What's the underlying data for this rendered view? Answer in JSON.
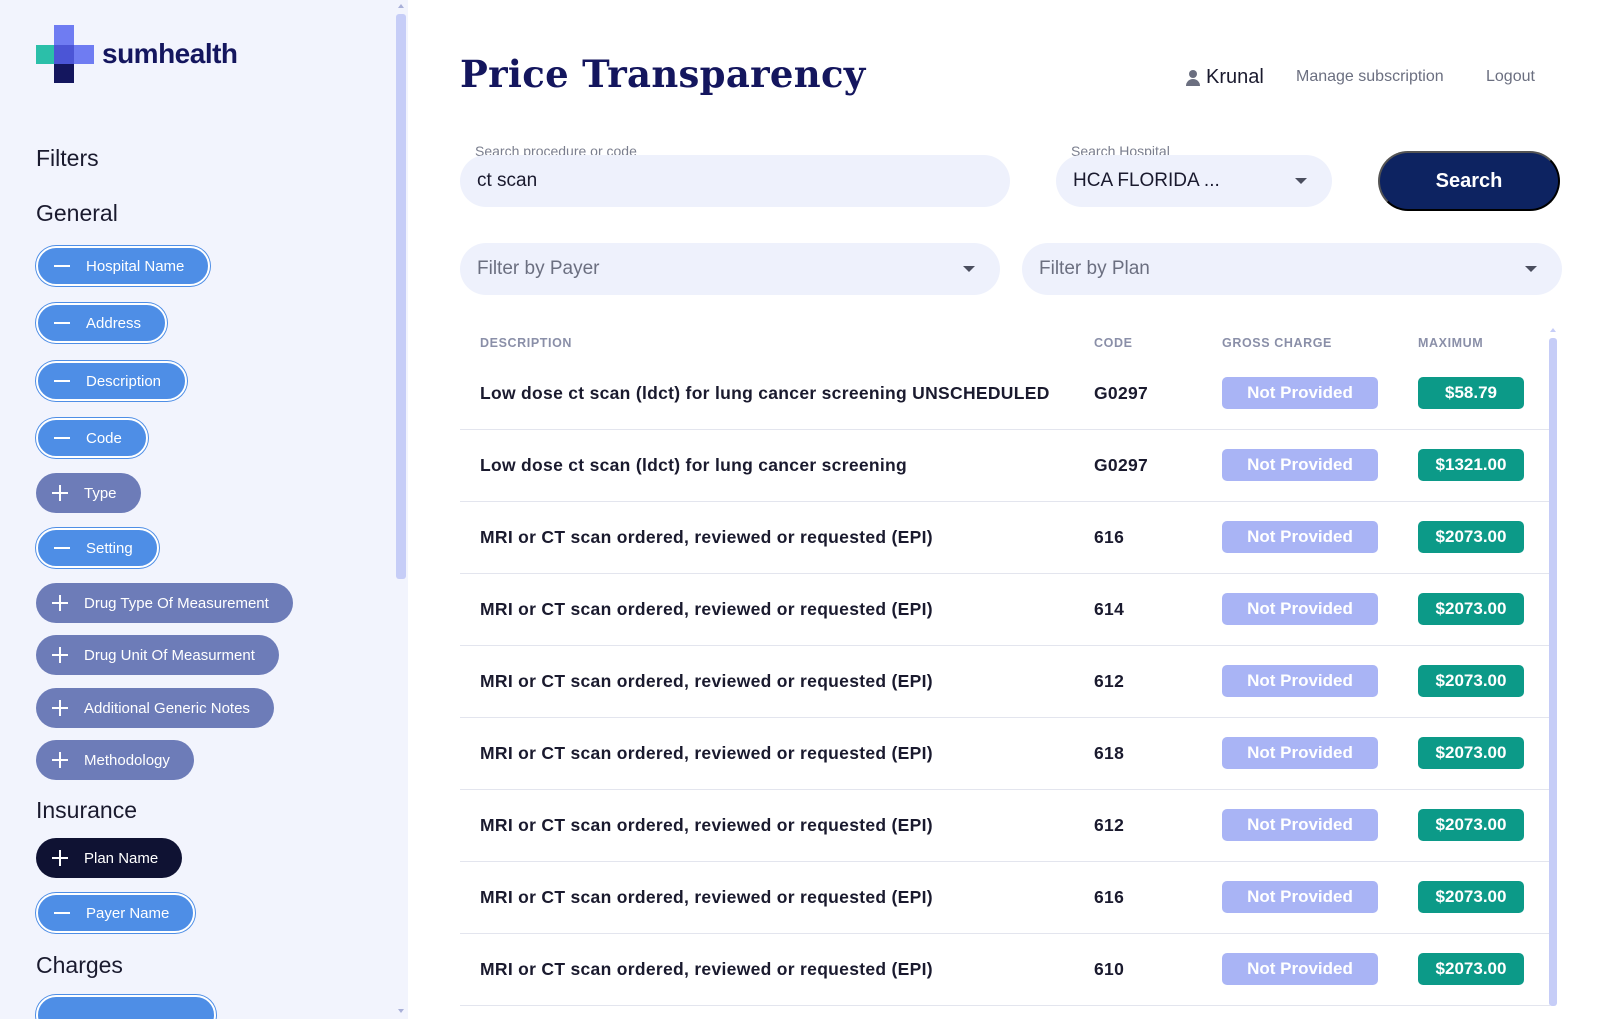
{
  "brand": {
    "name": "sumhealth"
  },
  "sidebar": {
    "filters_title": "Filters",
    "general_title": "General",
    "general_chips": [
      {
        "label": "Hospital Name",
        "state": "selected"
      },
      {
        "label": "Address",
        "state": "selected"
      },
      {
        "label": "Description",
        "state": "selected"
      },
      {
        "label": "Code",
        "state": "selected"
      },
      {
        "label": "Type",
        "state": "unselected"
      },
      {
        "label": "Setting",
        "state": "selected"
      },
      {
        "label": "Drug Type Of Measurement",
        "state": "unselected"
      },
      {
        "label": "Drug Unit Of Measurment",
        "state": "unselected"
      },
      {
        "label": "Additional Generic Notes",
        "state": "unselected"
      },
      {
        "label": "Methodology",
        "state": "unselected"
      }
    ],
    "insurance_title": "Insurance",
    "insurance_chips": [
      {
        "label": "Plan Name",
        "state": "unselected-dark"
      },
      {
        "label": "Payer Name",
        "state": "selected"
      }
    ],
    "charges_title": "Charges"
  },
  "header": {
    "title": "Price Transparency",
    "user_name": "Krunal",
    "manage_link": "Manage subscription",
    "logout_link": "Logout"
  },
  "search": {
    "procedure_label": "Search procedure or code",
    "procedure_value": "ct scan",
    "hospital_label": "Search Hospital",
    "hospital_value": "HCA FLORIDA ...",
    "button_label": "Search",
    "payer_placeholder": "Filter by Payer",
    "plan_placeholder": "Filter by Plan"
  },
  "table": {
    "columns": {
      "description": "DESCRIPTION",
      "code": "CODE",
      "gross": "GROSS CHARGE",
      "maximum": "MAXIMUM"
    },
    "rows": [
      {
        "description": "Low dose ct scan (ldct) for lung cancer screening UNSCHEDULED",
        "code": "G0297",
        "gross": "Not Provided",
        "maximum": "$58.79"
      },
      {
        "description": "Low dose ct scan (ldct) for lung cancer screening",
        "code": "G0297",
        "gross": "Not Provided",
        "maximum": "$1321.00"
      },
      {
        "description": "MRI or CT scan ordered, reviewed or requested (EPI)",
        "code": "616",
        "gross": "Not Provided",
        "maximum": "$2073.00"
      },
      {
        "description": "MRI or CT scan ordered, reviewed or requested (EPI)",
        "code": "614",
        "gross": "Not Provided",
        "maximum": "$2073.00"
      },
      {
        "description": "MRI or CT scan ordered, reviewed or requested (EPI)",
        "code": "612",
        "gross": "Not Provided",
        "maximum": "$2073.00"
      },
      {
        "description": "MRI or CT scan ordered, reviewed or requested (EPI)",
        "code": "618",
        "gross": "Not Provided",
        "maximum": "$2073.00"
      },
      {
        "description": "MRI or CT scan ordered, reviewed or requested (EPI)",
        "code": "612",
        "gross": "Not Provided",
        "maximum": "$2073.00"
      },
      {
        "description": "MRI or CT scan ordered, reviewed or requested (EPI)",
        "code": "616",
        "gross": "Not Provided",
        "maximum": "$2073.00"
      },
      {
        "description": "MRI or CT scan ordered, reviewed or requested (EPI)",
        "code": "610",
        "gross": "Not Provided",
        "maximum": "$2073.00"
      }
    ]
  },
  "colors": {
    "brand_navy": "#14165e",
    "chip_selected": "#4e8ee6",
    "chip_unselected": "#6d7cb8",
    "chip_dark": "#0f1233",
    "badge_not_provided": "#a9b4f5",
    "badge_maximum": "#0c9a88",
    "search_button": "#0d2361"
  }
}
